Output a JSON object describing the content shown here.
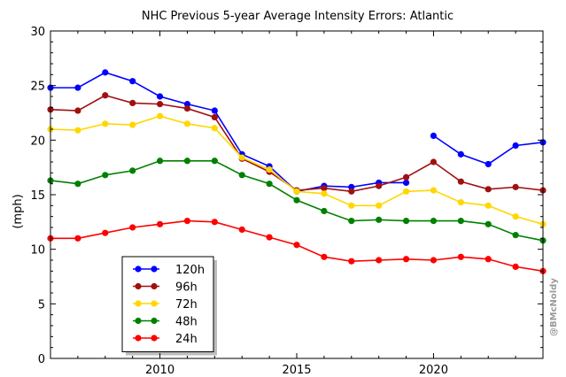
{
  "chart_data": {
    "type": "line",
    "title": "NHC Previous 5-year Average Intensity Errors: Atlantic",
    "xlabel": "",
    "ylabel": "(mph)",
    "xlim": [
      2006,
      2024
    ],
    "ylim": [
      0,
      30
    ],
    "x_ticks": [
      2010,
      2015,
      2020
    ],
    "y_ticks": [
      0,
      5,
      10,
      15,
      20,
      25,
      30
    ],
    "grid": false,
    "legend_position": "bottom-left",
    "x": [
      2006,
      2007,
      2008,
      2009,
      2010,
      2011,
      2012,
      2013,
      2014,
      2015,
      2016,
      2017,
      2018,
      2019,
      2020,
      2021,
      2022,
      2023,
      2024
    ],
    "series": [
      {
        "name": "120h",
        "color": "#0000ff",
        "values": [
          24.8,
          24.8,
          26.2,
          25.4,
          24.0,
          23.3,
          22.7,
          18.7,
          17.6,
          15.3,
          15.8,
          15.7,
          16.1,
          16.1,
          null,
          null,
          null,
          null,
          null
        ]
      },
      {
        "name": "120h",
        "color": "#0000ff",
        "legend": false,
        "values": [
          null,
          null,
          null,
          null,
          null,
          null,
          null,
          null,
          null,
          null,
          null,
          null,
          null,
          null,
          20.4,
          18.7,
          17.8,
          19.5,
          19.8
        ]
      },
      {
        "name": "96h",
        "color": "#a01010",
        "values": [
          22.8,
          22.7,
          24.1,
          23.4,
          23.3,
          22.9,
          22.1,
          18.3,
          17.1,
          15.4,
          15.6,
          15.3,
          15.8,
          16.6,
          18.0,
          16.2,
          15.5,
          15.7,
          15.4
        ]
      },
      {
        "name": "72h",
        "color": "#ffd700",
        "values": [
          21.0,
          20.9,
          21.5,
          21.4,
          22.2,
          21.5,
          21.1,
          18.4,
          17.3,
          15.3,
          15.1,
          14.0,
          14.0,
          15.3,
          15.4,
          14.3,
          14.0,
          13.0,
          12.3
        ]
      },
      {
        "name": "48h",
        "color": "#008000",
        "values": [
          16.3,
          16.0,
          16.8,
          17.2,
          18.1,
          18.1,
          18.1,
          16.8,
          16.0,
          14.5,
          13.5,
          12.6,
          12.7,
          12.6,
          12.6,
          12.6,
          12.3,
          11.3,
          10.8
        ]
      },
      {
        "name": "24h",
        "color": "#ff0000",
        "values": [
          11.0,
          11.0,
          11.5,
          12.0,
          12.3,
          12.6,
          12.5,
          11.8,
          11.1,
          10.4,
          9.3,
          8.9,
          9.0,
          9.1,
          9.0,
          9.3,
          9.1,
          8.4,
          8.0
        ]
      }
    ]
  },
  "watermark": "@BMcNoldy"
}
